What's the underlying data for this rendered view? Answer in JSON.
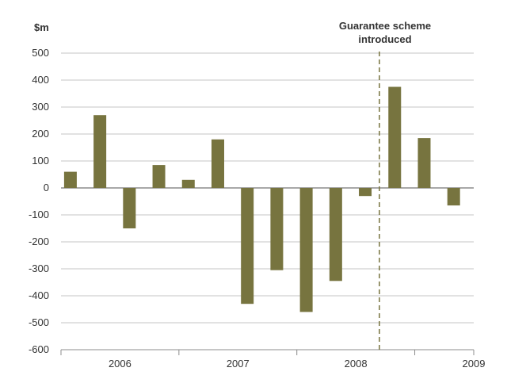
{
  "chart_data": {
    "type": "bar",
    "ylabel": "$m",
    "xlabel": "",
    "title": "",
    "ylim": [
      -600,
      500
    ],
    "yticks": [
      500,
      400,
      300,
      200,
      100,
      0,
      -100,
      -200,
      -300,
      -400,
      -500,
      -600
    ],
    "ytick_labels": [
      "500",
      "400",
      "300",
      "200",
      "100",
      "0",
      "-100",
      "-200",
      "-300",
      "-400",
      "-500",
      "-600"
    ],
    "x_start_year": 2006,
    "x_end_year": 2009.5,
    "xticks": [
      "2006",
      "2007",
      "2008",
      "2009"
    ],
    "series": [
      {
        "x": [
          2006.08,
          2006.33,
          2006.58,
          2006.83,
          2007.08,
          2007.33,
          2007.58,
          2007.83,
          2008.08,
          2008.33,
          2008.58,
          2008.83,
          2009.08,
          2009.33
        ],
        "values": [
          60,
          270,
          -150,
          85,
          30,
          180,
          -430,
          -305,
          -460,
          -345,
          -30,
          375,
          185,
          -65
        ]
      }
    ],
    "bar_color": "#77743f",
    "annotation": {
      "lines": [
        "Guarantee scheme",
        "introduced"
      ],
      "x": 2008.7
    },
    "grid": true
  }
}
